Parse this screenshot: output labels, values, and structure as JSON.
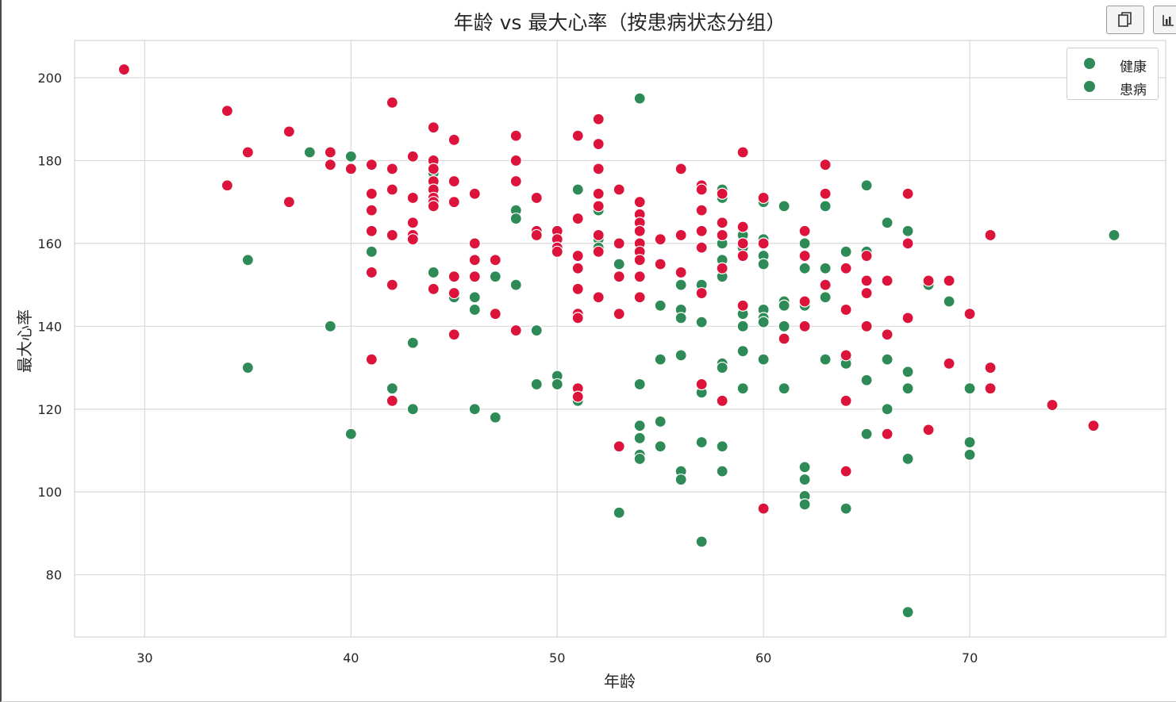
{
  "toolbar": {
    "copy_icon": "copy-icon",
    "chart_icon": "bar-chart-icon"
  },
  "colors": {
    "healthy": "#2e8b57",
    "disease": "#dc143c",
    "grid": "#d9d9d9",
    "axis_text": "#262626"
  },
  "chart_data": {
    "type": "scatter",
    "title": "年龄 vs 最大心率（按患病状态分组）",
    "xlabel": "年龄",
    "ylabel": "最大心率",
    "xlim": [
      26.6,
      79.5
    ],
    "ylim": [
      65,
      209
    ],
    "xticks": [
      30,
      40,
      50,
      60,
      70
    ],
    "yticks": [
      80,
      100,
      120,
      140,
      160,
      180,
      200
    ],
    "grid": true,
    "legend_position": "top-right",
    "series": [
      {
        "name": "健康",
        "color": "#2e8b57",
        "points": [
          [
            35,
            156
          ],
          [
            35,
            130
          ],
          [
            38,
            182
          ],
          [
            39,
            140
          ],
          [
            40,
            181
          ],
          [
            40,
            114
          ],
          [
            41,
            158
          ],
          [
            42,
            125
          ],
          [
            43,
            136
          ],
          [
            43,
            120
          ],
          [
            44,
            177
          ],
          [
            44,
            175
          ],
          [
            44,
            153
          ],
          [
            45,
            147
          ],
          [
            46,
            147
          ],
          [
            46,
            144
          ],
          [
            46,
            120
          ],
          [
            47,
            152
          ],
          [
            47,
            118
          ],
          [
            48,
            168
          ],
          [
            48,
            166
          ],
          [
            48,
            150
          ],
          [
            49,
            139
          ],
          [
            49,
            126
          ],
          [
            50,
            128
          ],
          [
            50,
            126
          ],
          [
            51,
            173
          ],
          [
            51,
            122
          ],
          [
            52,
            168
          ],
          [
            52,
            161
          ],
          [
            52,
            159
          ],
          [
            53,
            155
          ],
          [
            53,
            95
          ],
          [
            54,
            195
          ],
          [
            54,
            126
          ],
          [
            54,
            116
          ],
          [
            54,
            113
          ],
          [
            54,
            109
          ],
          [
            54,
            108
          ],
          [
            55,
            145
          ],
          [
            55,
            132
          ],
          [
            55,
            117
          ],
          [
            55,
            111
          ],
          [
            56,
            150
          ],
          [
            56,
            144
          ],
          [
            56,
            142
          ],
          [
            56,
            133
          ],
          [
            56,
            105
          ],
          [
            56,
            103
          ],
          [
            57,
            150
          ],
          [
            57,
            141
          ],
          [
            57,
            124
          ],
          [
            57,
            112
          ],
          [
            57,
            88
          ],
          [
            58,
            173
          ],
          [
            58,
            171
          ],
          [
            58,
            160
          ],
          [
            58,
            156
          ],
          [
            58,
            152
          ],
          [
            58,
            131
          ],
          [
            58,
            130
          ],
          [
            58,
            111
          ],
          [
            58,
            105
          ],
          [
            59,
            162
          ],
          [
            59,
            159
          ],
          [
            59,
            143
          ],
          [
            59,
            140
          ],
          [
            59,
            134
          ],
          [
            59,
            125
          ],
          [
            60,
            170
          ],
          [
            60,
            161
          ],
          [
            60,
            157
          ],
          [
            60,
            155
          ],
          [
            60,
            144
          ],
          [
            60,
            142
          ],
          [
            60,
            141
          ],
          [
            60,
            132
          ],
          [
            61,
            169
          ],
          [
            61,
            146
          ],
          [
            61,
            145
          ],
          [
            61,
            140
          ],
          [
            61,
            125
          ],
          [
            62,
            160
          ],
          [
            62,
            154
          ],
          [
            62,
            145
          ],
          [
            62,
            106
          ],
          [
            62,
            103
          ],
          [
            62,
            99
          ],
          [
            62,
            97
          ],
          [
            63,
            169
          ],
          [
            63,
            154
          ],
          [
            63,
            147
          ],
          [
            63,
            132
          ],
          [
            64,
            158
          ],
          [
            64,
            132
          ],
          [
            64,
            131
          ],
          [
            64,
            96
          ],
          [
            65,
            174
          ],
          [
            65,
            158
          ],
          [
            65,
            127
          ],
          [
            65,
            114
          ],
          [
            66,
            165
          ],
          [
            66,
            132
          ],
          [
            66,
            120
          ],
          [
            67,
            163
          ],
          [
            67,
            129
          ],
          [
            67,
            125
          ],
          [
            67,
            108
          ],
          [
            67,
            71
          ],
          [
            68,
            150
          ],
          [
            69,
            146
          ],
          [
            70,
            125
          ],
          [
            70,
            112
          ],
          [
            70,
            109
          ],
          [
            77,
            162
          ]
        ]
      },
      {
        "name": "患病",
        "color": "#dc143c",
        "points": [
          [
            29,
            202
          ],
          [
            34,
            192
          ],
          [
            34,
            174
          ],
          [
            35,
            182
          ],
          [
            37,
            187
          ],
          [
            37,
            170
          ],
          [
            39,
            182
          ],
          [
            39,
            179
          ],
          [
            40,
            178
          ],
          [
            41,
            179
          ],
          [
            41,
            172
          ],
          [
            41,
            168
          ],
          [
            41,
            163
          ],
          [
            41,
            153
          ],
          [
            41,
            132
          ],
          [
            42,
            194
          ],
          [
            42,
            178
          ],
          [
            42,
            173
          ],
          [
            42,
            162
          ],
          [
            42,
            150
          ],
          [
            42,
            122
          ],
          [
            43,
            181
          ],
          [
            43,
            171
          ],
          [
            43,
            165
          ],
          [
            43,
            162
          ],
          [
            43,
            161
          ],
          [
            44,
            188
          ],
          [
            44,
            180
          ],
          [
            44,
            178
          ],
          [
            44,
            175
          ],
          [
            44,
            173
          ],
          [
            44,
            171
          ],
          [
            44,
            170
          ],
          [
            44,
            169
          ],
          [
            44,
            149
          ],
          [
            45,
            185
          ],
          [
            45,
            175
          ],
          [
            45,
            170
          ],
          [
            45,
            152
          ],
          [
            45,
            148
          ],
          [
            45,
            138
          ],
          [
            46,
            172
          ],
          [
            46,
            160
          ],
          [
            46,
            156
          ],
          [
            46,
            152
          ],
          [
            47,
            156
          ],
          [
            47,
            143
          ],
          [
            48,
            186
          ],
          [
            48,
            180
          ],
          [
            48,
            175
          ],
          [
            48,
            139
          ],
          [
            49,
            171
          ],
          [
            49,
            163
          ],
          [
            49,
            162
          ],
          [
            50,
            163
          ],
          [
            50,
            161
          ],
          [
            50,
            159
          ],
          [
            50,
            158
          ],
          [
            51,
            186
          ],
          [
            51,
            166
          ],
          [
            51,
            157
          ],
          [
            51,
            154
          ],
          [
            51,
            149
          ],
          [
            51,
            143
          ],
          [
            51,
            142
          ],
          [
            51,
            125
          ],
          [
            51,
            123
          ],
          [
            52,
            190
          ],
          [
            52,
            184
          ],
          [
            52,
            178
          ],
          [
            52,
            172
          ],
          [
            52,
            169
          ],
          [
            52,
            162
          ],
          [
            52,
            158
          ],
          [
            52,
            147
          ],
          [
            53,
            173
          ],
          [
            53,
            160
          ],
          [
            53,
            152
          ],
          [
            53,
            143
          ],
          [
            53,
            111
          ],
          [
            54,
            170
          ],
          [
            54,
            167
          ],
          [
            54,
            165
          ],
          [
            54,
            163
          ],
          [
            54,
            160
          ],
          [
            54,
            158
          ],
          [
            54,
            156
          ],
          [
            54,
            152
          ],
          [
            54,
            147
          ],
          [
            55,
            161
          ],
          [
            55,
            155
          ],
          [
            56,
            178
          ],
          [
            56,
            162
          ],
          [
            56,
            153
          ],
          [
            57,
            174
          ],
          [
            57,
            173
          ],
          [
            57,
            168
          ],
          [
            57,
            163
          ],
          [
            57,
            159
          ],
          [
            57,
            148
          ],
          [
            57,
            126
          ],
          [
            58,
            172
          ],
          [
            58,
            165
          ],
          [
            58,
            162
          ],
          [
            58,
            154
          ],
          [
            58,
            122
          ],
          [
            59,
            182
          ],
          [
            59,
            164
          ],
          [
            59,
            160
          ],
          [
            59,
            157
          ],
          [
            59,
            145
          ],
          [
            60,
            171
          ],
          [
            60,
            160
          ],
          [
            60,
            96
          ],
          [
            61,
            137
          ],
          [
            62,
            163
          ],
          [
            62,
            157
          ],
          [
            62,
            146
          ],
          [
            62,
            140
          ],
          [
            63,
            179
          ],
          [
            63,
            172
          ],
          [
            63,
            150
          ],
          [
            64,
            154
          ],
          [
            64,
            144
          ],
          [
            64,
            133
          ],
          [
            64,
            122
          ],
          [
            64,
            105
          ],
          [
            65,
            157
          ],
          [
            65,
            151
          ],
          [
            65,
            148
          ],
          [
            65,
            140
          ],
          [
            66,
            151
          ],
          [
            66,
            138
          ],
          [
            66,
            114
          ],
          [
            67,
            172
          ],
          [
            67,
            160
          ],
          [
            67,
            142
          ],
          [
            68,
            151
          ],
          [
            68,
            115
          ],
          [
            69,
            151
          ],
          [
            69,
            131
          ],
          [
            70,
            143
          ],
          [
            71,
            162
          ],
          [
            71,
            130
          ],
          [
            71,
            125
          ],
          [
            74,
            121
          ],
          [
            76,
            116
          ]
        ]
      }
    ]
  }
}
